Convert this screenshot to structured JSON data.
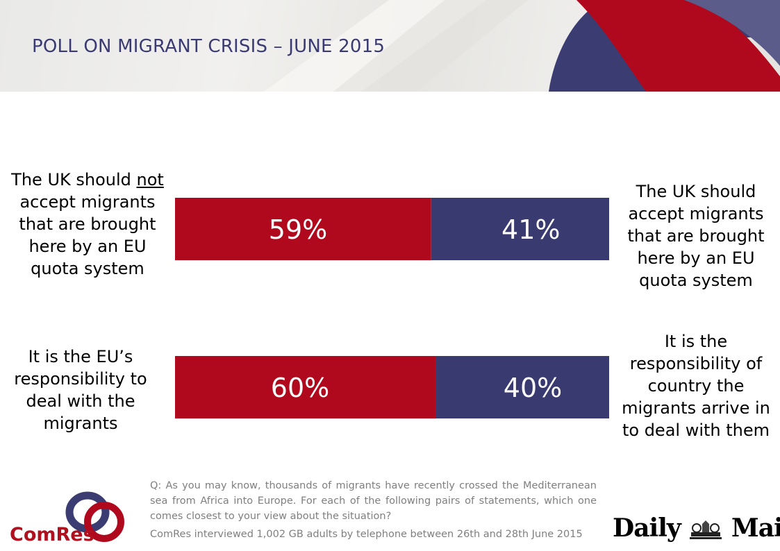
{
  "title": "POLL ON MIGRANT CRISIS – JUNE 2015",
  "colors": {
    "left": "#b0091e",
    "right": "#383a70",
    "title": "#3b3b73"
  },
  "chart_data": {
    "type": "bar",
    "orientation": "horizontal-stacked",
    "rows": [
      {
        "left_statement_parts": [
          "The UK should ",
          "not",
          " accept migrants that are brought here by an EU quota system"
        ],
        "right_statement": "The UK should accept migrants that are brought here by an EU quota system",
        "left_value": 59,
        "right_value": 41,
        "left_label": "59%",
        "right_label": "41%"
      },
      {
        "left_statement": "It is the EU’s responsibility to deal with the migrants",
        "right_statement": "It is the responsibility of country the migrants arrive in to deal with them",
        "left_value": 60,
        "right_value": 40,
        "left_label": "60%",
        "right_label": "40%"
      }
    ]
  },
  "question": "Q: As you may know, thousands of migrants have recently crossed the Mediterranean sea from Africa into Europe. For each of the following pairs of statements, which one comes closest to your view about the situation?",
  "footnote": "ComRes interviewed 1,002 GB adults by telephone between 26th and 28th June 2015",
  "logos": {
    "comres": "ComRes",
    "daily_mail_left": "Daily",
    "daily_mail_right": "Mail",
    "daily_mail_crest_icon": "crest-icon"
  }
}
